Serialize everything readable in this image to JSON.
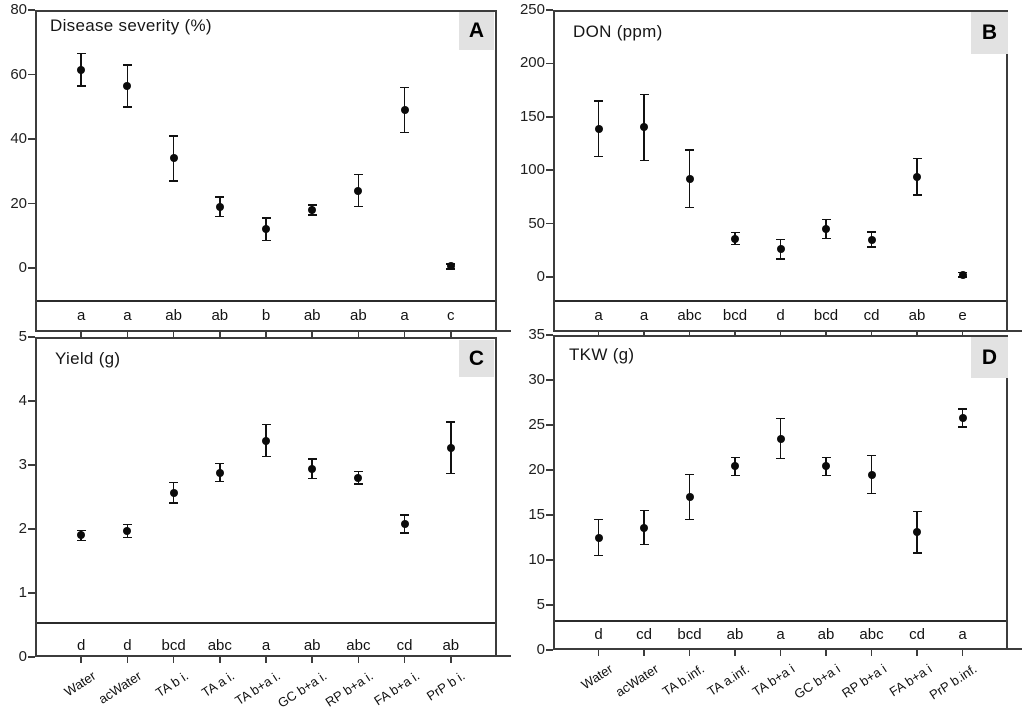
{
  "figure": {
    "background": "#ffffff",
    "colors": {
      "marker": "#0b0b0b",
      "frame": "#3c3c3c",
      "panel_tag_bg": "#e2e2e2",
      "text": "#1a1a1a"
    }
  },
  "chart_data": [
    {
      "panel": "A",
      "type": "scatter",
      "title": "Disease severity (%)",
      "ylim": [
        0,
        80
      ],
      "yticks": [
        0,
        20,
        40,
        60,
        80
      ],
      "values": [
        61.5,
        56.5,
        34,
        19,
        12,
        18,
        24,
        49,
        0.5
      ],
      "errors": [
        5,
        6.5,
        7,
        3,
        3.5,
        1.5,
        5,
        7,
        0.8
      ],
      "sig_letters": [
        "a",
        "a",
        "ab",
        "ab",
        "b",
        "ab",
        "ab",
        "a",
        "c"
      ],
      "x_tick_labels_shown": false,
      "grid": false,
      "legend": false
    },
    {
      "panel": "B",
      "type": "scatter",
      "title": "DON (ppm)",
      "ylim": [
        0,
        250
      ],
      "yticks": [
        0,
        50,
        100,
        150,
        200,
        250
      ],
      "values": [
        139,
        140,
        92,
        36,
        26,
        45,
        35,
        94,
        2
      ],
      "errors": [
        26,
        31,
        27,
        5.5,
        9,
        9,
        7,
        17,
        2
      ],
      "sig_letters": [
        "a",
        "a",
        "abc",
        "bcd",
        "d",
        "bcd",
        "cd",
        "ab",
        "e"
      ],
      "x_tick_labels_shown": false,
      "grid": false,
      "legend": false
    },
    {
      "panel": "C",
      "type": "scatter",
      "title": "Yield (g)",
      "ylim": [
        0,
        5
      ],
      "yticks": [
        0,
        1,
        2,
        3,
        4,
        5
      ],
      "categories": [
        "Water",
        "acWater",
        "TA b i.",
        "TA a i.",
        "TA b+a i.",
        "GC b+a i.",
        "RP b+a i.",
        "FA b+a i.",
        "PrP b i."
      ],
      "values": [
        1.9,
        1.97,
        2.57,
        2.88,
        3.38,
        2.94,
        2.8,
        2.08,
        3.27
      ],
      "errors": [
        0.08,
        0.1,
        0.16,
        0.14,
        0.25,
        0.15,
        0.1,
        0.14,
        0.4
      ],
      "sig_letters": [
        "d",
        "d",
        "bcd",
        "abc",
        "a",
        "ab",
        "abc",
        "cd",
        "ab"
      ],
      "x_tick_labels_shown": true,
      "grid": false,
      "legend": false
    },
    {
      "panel": "D",
      "type": "scatter",
      "title": "TKW (g)",
      "ylim": [
        0,
        35
      ],
      "yticks": [
        0,
        5,
        10,
        15,
        20,
        25,
        30,
        35
      ],
      "categories": [
        "Water",
        "acWater",
        "TA b.inf.",
        "TA a.inf.",
        "TA b+a i",
        "GC b+a i",
        "RP b+a i",
        "FA b+a i",
        "PrP b.inf."
      ],
      "values": [
        12.5,
        13.6,
        17,
        20.4,
        23.5,
        20.4,
        19.5,
        13.1,
        25.8
      ],
      "errors": [
        2,
        1.9,
        2.5,
        1,
        2.2,
        1,
        2.1,
        2.3,
        1
      ],
      "sig_letters": [
        "d",
        "cd",
        "bcd",
        "ab",
        "a",
        "ab",
        "abc",
        "cd",
        "a"
      ],
      "x_tick_labels_shown": true,
      "grid": false,
      "legend": false
    }
  ]
}
